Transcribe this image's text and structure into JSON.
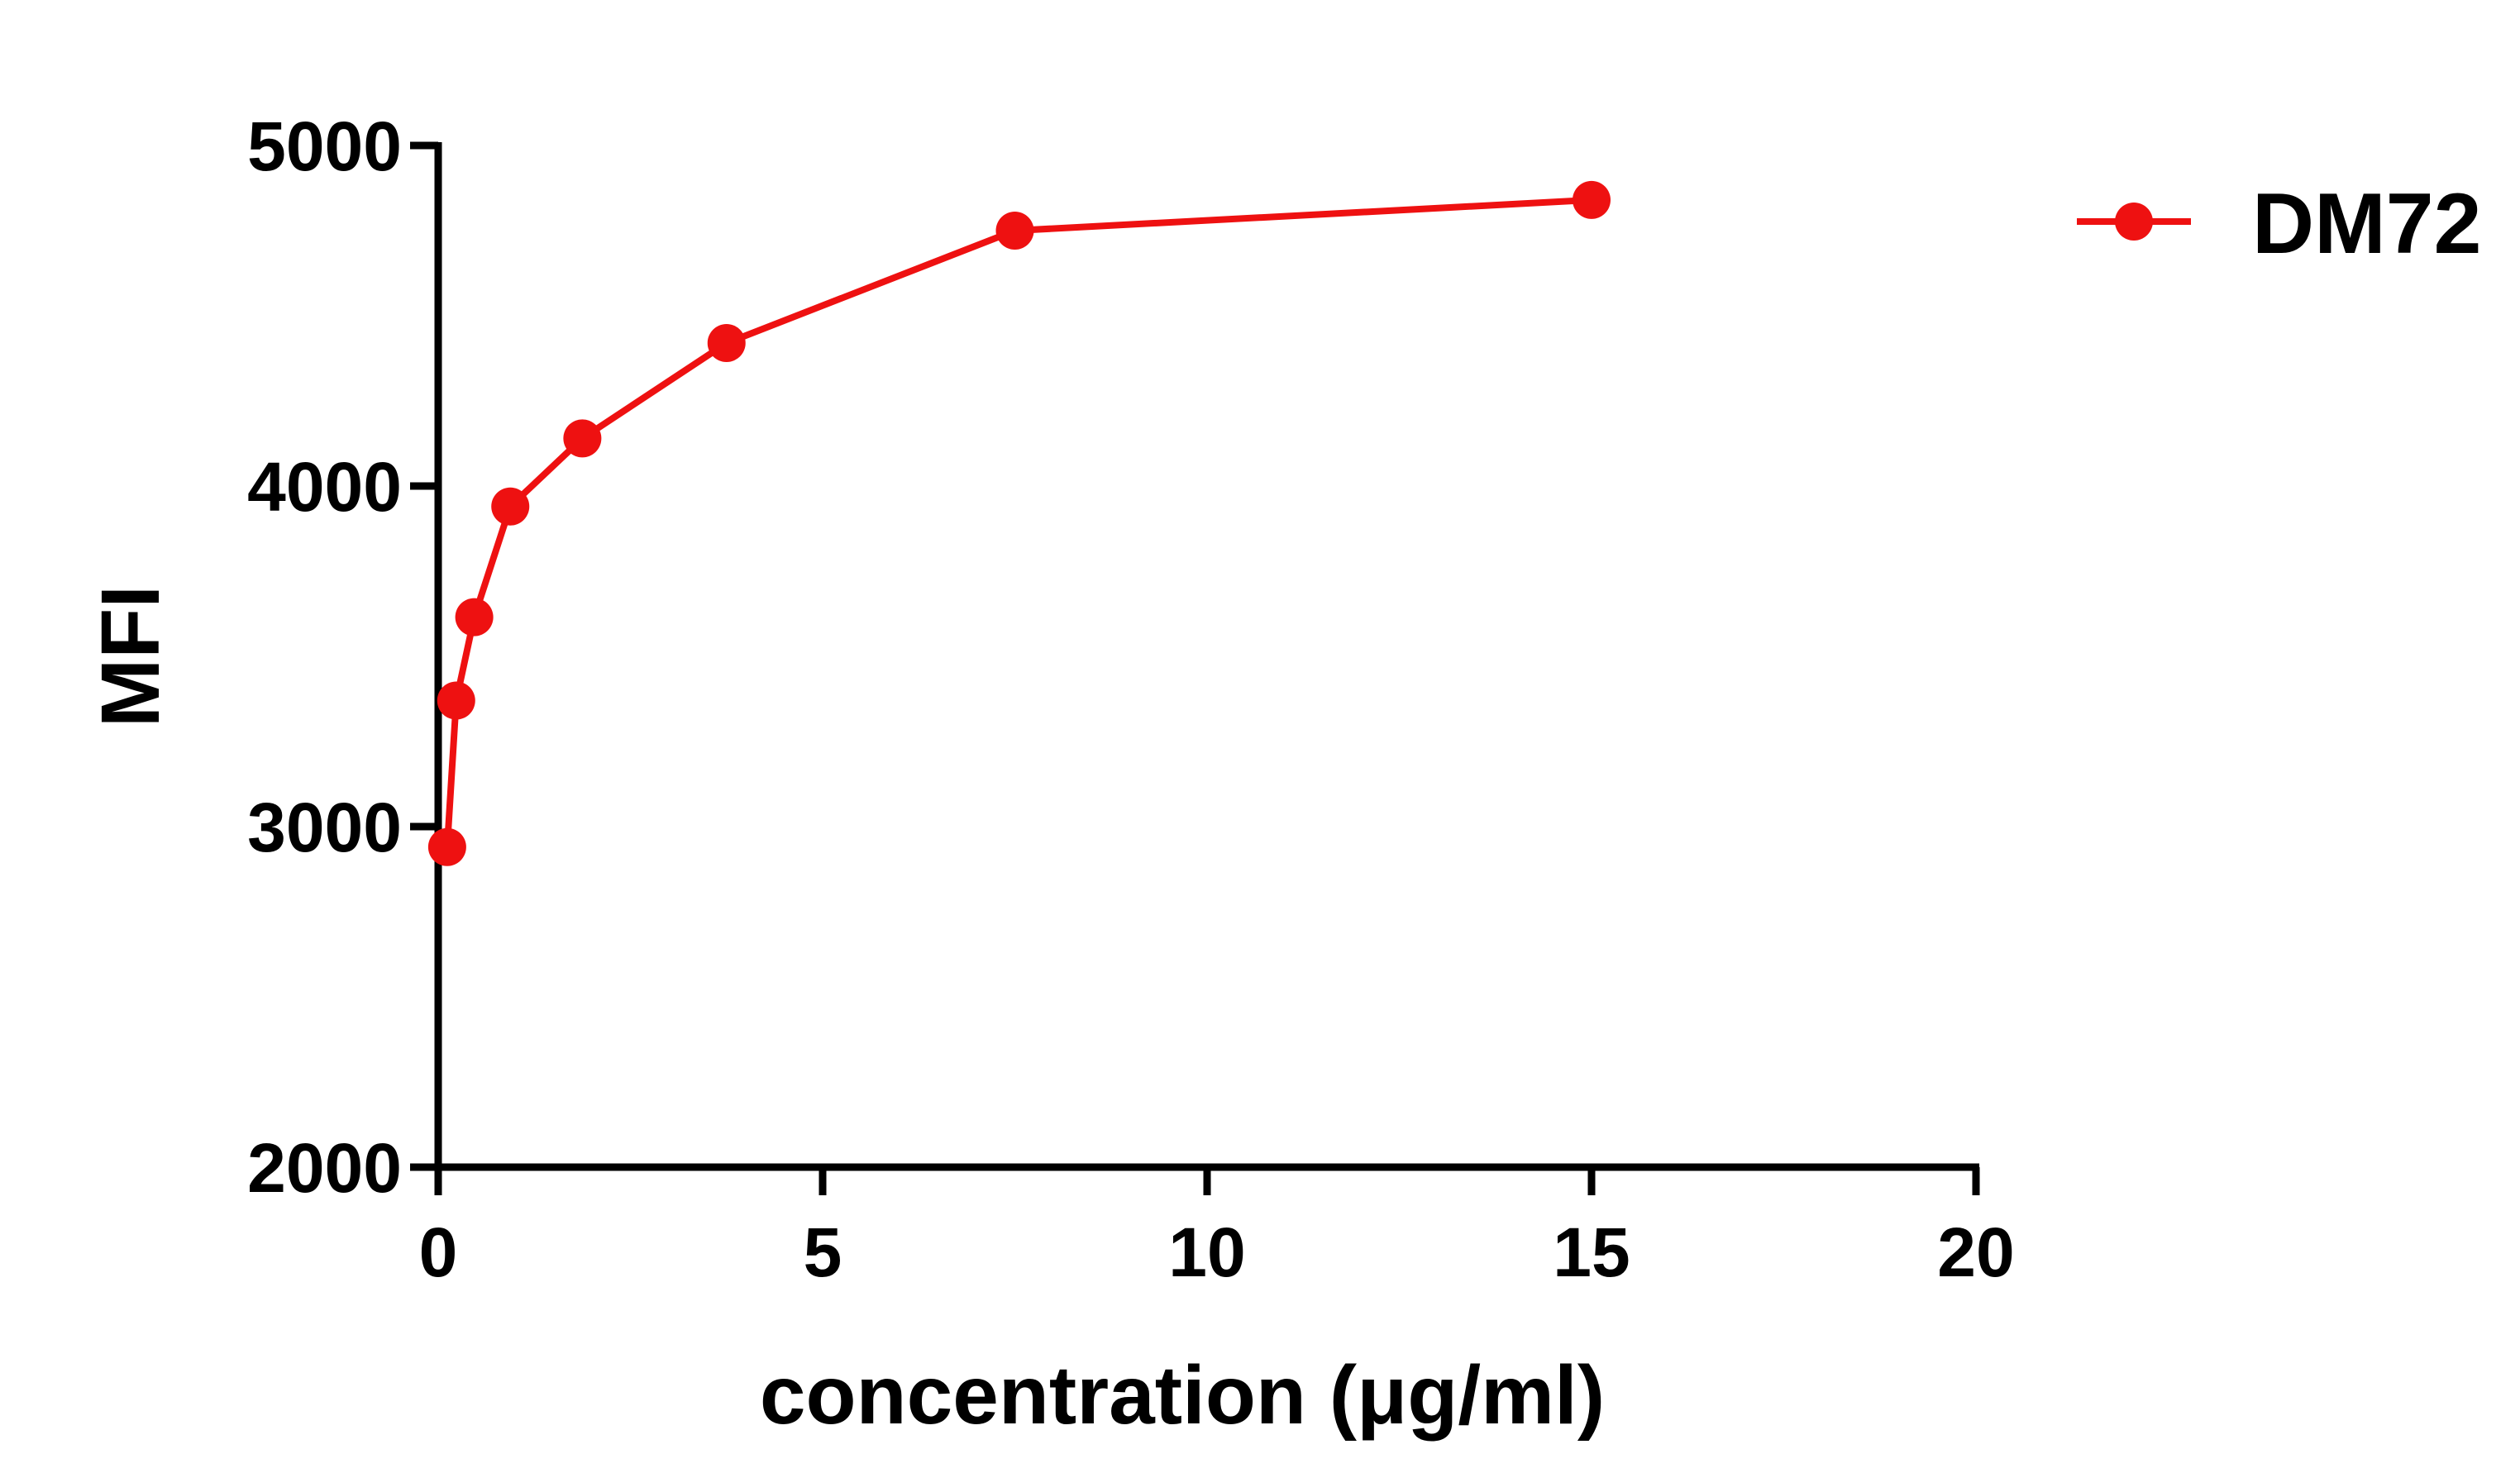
{
  "chart_data": {
    "type": "line",
    "title": "",
    "xlabel": "concentration (μg/ml)",
    "ylabel": "MFI",
    "xlim": [
      0,
      20
    ],
    "ylim": [
      2000,
      5000
    ],
    "xticks": [
      0,
      5,
      10,
      15,
      20
    ],
    "yticks": [
      2000,
      3000,
      4000,
      5000
    ],
    "grid": false,
    "legend": "top-right",
    "series": [
      {
        "name": "DM72",
        "color": "#ee1111",
        "marker": "circle",
        "x": [
          0.117,
          0.234,
          0.469,
          0.938,
          1.875,
          3.75,
          7.5,
          15
        ],
        "y": [
          2940,
          3370,
          3615,
          3940,
          4140,
          4420,
          4750,
          4840
        ]
      }
    ]
  }
}
